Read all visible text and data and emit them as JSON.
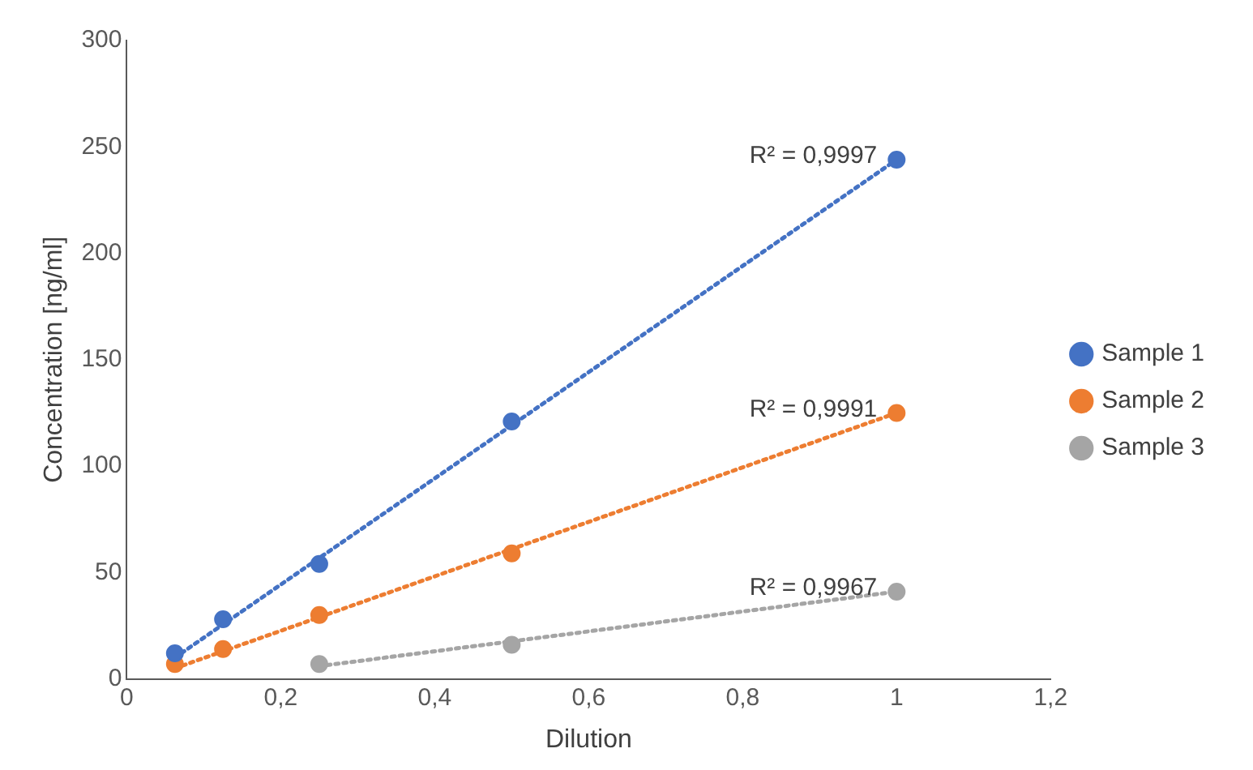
{
  "chart_data": {
    "type": "scatter",
    "xlabel": "Dilution",
    "ylabel": "Concentration [ng/ml]",
    "xlim": [
      0,
      1.2
    ],
    "ylim": [
      0,
      300
    ],
    "xticks": [
      0,
      {
        "value": 0.2,
        "label": "0,2"
      },
      {
        "value": 0.4,
        "label": "0,4"
      },
      {
        "value": 0.6,
        "label": "0,6"
      },
      {
        "value": 0.8,
        "label": "0,8"
      },
      1,
      {
        "value": 1.2,
        "label": "1,2"
      }
    ],
    "yticks": [
      0,
      50,
      100,
      150,
      200,
      250,
      300
    ],
    "grid": false,
    "legend": "right",
    "marker": "circle",
    "series": [
      {
        "name": "Sample 1",
        "color": "#4472c4",
        "x": [
          0.0625,
          0.125,
          0.25,
          0.5,
          1
        ],
        "values": [
          12,
          28,
          54,
          121,
          244
        ]
      },
      {
        "name": "Sample 2",
        "color": "#ed7d31",
        "x": [
          0.0625,
          0.125,
          0.25,
          0.5,
          1
        ],
        "values": [
          7,
          14,
          30,
          59,
          125
        ]
      },
      {
        "name": "Sample 3",
        "color": "#a5a5a5",
        "x": [
          0.25,
          0.5,
          1
        ],
        "values": [
          7,
          16,
          41
        ]
      },
      {
        "type": "line",
        "marker": "none",
        "color": "#4472c4",
        "line_style": "dotted",
        "x": [
          0.0625,
          1
        ],
        "values": [
          10,
          244
        ]
      },
      {
        "type": "line",
        "marker": "none",
        "color": "#ed7d31",
        "line_style": "dotted",
        "x": [
          0.0625,
          1
        ],
        "values": [
          5,
          125
        ]
      },
      {
        "type": "line",
        "marker": "none",
        "color": "#a5a5a5",
        "line_style": "dotted",
        "x": [
          0.25,
          1
        ],
        "values": [
          6,
          41
        ]
      }
    ],
    "annotations": [
      "R² = 0,9997",
      "R² = 0,9991",
      "R² = 0,9967"
    ]
  }
}
